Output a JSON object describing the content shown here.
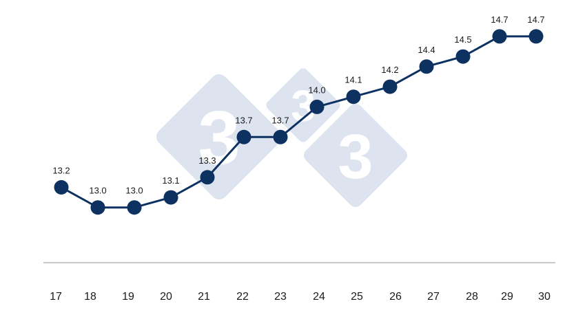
{
  "chart_data": {
    "type": "line",
    "title": "",
    "xlabel": "",
    "ylabel": "",
    "categories": [
      "17",
      "18",
      "19",
      "20",
      "21",
      "22",
      "23",
      "24",
      "25",
      "26",
      "27",
      "28",
      "29",
      "30"
    ],
    "series": [
      {
        "values": [
          13.2,
          13.0,
          13.0,
          13.1,
          13.3,
          13.7,
          13.7,
          14.0,
          14.1,
          14.2,
          14.4,
          14.5,
          14.7,
          14.7
        ],
        "labels": [
          "13.2",
          "13.0",
          "13.0",
          "13.1",
          "13.3",
          "13.7",
          "13.7",
          "14.0",
          "14.1",
          "14.2",
          "14.4",
          "14.5",
          "14.7",
          "14.7"
        ],
        "color": "#0d3161"
      }
    ],
    "ylim": [
      12.0,
      14.85
    ],
    "grid": false,
    "legend": "none",
    "axis_line_color": "#c8c8c8"
  },
  "watermark": {
    "name": "333-logo",
    "color": "#dde4ef",
    "digit": "3"
  }
}
